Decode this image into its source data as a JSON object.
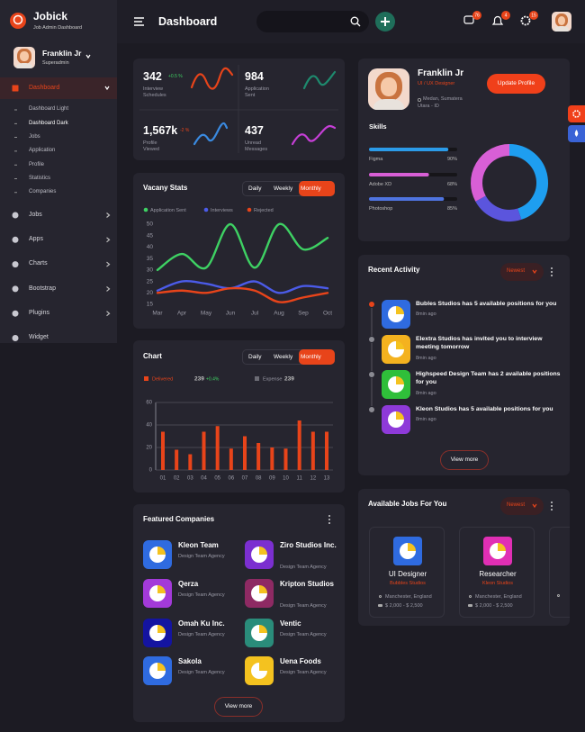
{
  "header": {
    "brand": "Jobick",
    "brand_subtitle": "Job Admin Dashboard",
    "page_title": "Dashboard",
    "notifications": [
      "76",
      "4",
      "15"
    ]
  },
  "sidebar": {
    "user_name": "Franklin Jr",
    "user_role": "Superadmin",
    "menu": [
      {
        "label": "Dashboard",
        "active": true,
        "submenu": [
          "Dashboard Light",
          "Dashboard Dark",
          "Jobs",
          "Application",
          "Profile",
          "Statistics",
          "Companies"
        ]
      },
      {
        "label": "Jobs"
      },
      {
        "label": "Apps"
      },
      {
        "label": "Charts"
      },
      {
        "label": "Bootstrap"
      },
      {
        "label": "Plugins"
      },
      {
        "label": "Widget"
      }
    ]
  },
  "stats": [
    {
      "value": "342",
      "change": "+0.5 %",
      "label": "Interview Schedules"
    },
    {
      "value": "984",
      "label": "Application Sent"
    },
    {
      "value": "1,567k",
      "change": "-2 %",
      "label": "Profile Viewed"
    },
    {
      "value": "437",
      "label": "Unread Messages"
    }
  ],
  "profile": {
    "name": "Franklin Jr",
    "role": "UI / UX Designer",
    "location": "Medan, Sumatera Utara - ID",
    "button": "Update Profile",
    "skills_title": "Skills",
    "skills": [
      {
        "name": "Figma",
        "value": 90,
        "value_label": "90%",
        "color": "#2b9be8"
      },
      {
        "name": "Adobe XD",
        "value": 68,
        "value_label": "68%",
        "color": "#d85fd6"
      },
      {
        "name": "Photoshop",
        "value": 85,
        "value_label": "85%",
        "color": "#4f74e0"
      }
    ]
  },
  "chart_data": [
    {
      "type": "line",
      "title": "Vacany Stats",
      "tabs": [
        "Daily",
        "Weekly",
        "Monthly"
      ],
      "active_tab": 2,
      "categories": [
        "Mar",
        "Apr",
        "May",
        "Jun",
        "Jul",
        "Aug",
        "Sep",
        "Oct"
      ],
      "series": [
        {
          "name": "Application Sent",
          "color": "#3ed163",
          "values": [
            30,
            37,
            31,
            50,
            31,
            50,
            39,
            44
          ]
        },
        {
          "name": "Interviews",
          "color": "#4b5be8",
          "values": [
            21,
            25,
            24,
            22,
            25,
            20,
            23,
            22
          ]
        },
        {
          "name": "Rejected",
          "color": "#e8441a",
          "values": [
            20,
            21,
            20,
            22,
            21,
            16,
            18,
            20
          ]
        }
      ],
      "ylim": [
        15,
        50
      ],
      "yticks": [
        15,
        20,
        25,
        30,
        35,
        40,
        45,
        50
      ],
      "grid": false
    },
    {
      "type": "bar",
      "title": "Chart",
      "tabs": [
        "Daily",
        "Weekly",
        "Monthly"
      ],
      "active_tab": 2,
      "categories": [
        "01",
        "02",
        "03",
        "04",
        "05",
        "06",
        "07",
        "08",
        "09",
        "10",
        "11",
        "12",
        "13"
      ],
      "series": [
        {
          "name": "Delivered",
          "color": "#e8441a",
          "total": "239",
          "change": "+0.4%",
          "values": [
            34,
            18,
            14,
            34,
            39,
            19,
            30,
            24,
            20,
            19,
            44,
            34,
            34
          ]
        }
      ],
      "legend_extra": {
        "name": "Expense",
        "color": "#6b6b74",
        "total": "239"
      },
      "ylim": [
        0,
        60
      ],
      "yticks": [
        0,
        20,
        40,
        60
      ],
      "grid": true
    },
    {
      "type": "donut",
      "values": [
        45,
        22,
        33
      ],
      "colors": [
        "#1e9ef0",
        "#5b55dd",
        "#d85fd6"
      ]
    }
  ],
  "recent_activity": {
    "title": "Recent Activity",
    "filter": "Newest",
    "button": "View more",
    "items": [
      {
        "text": "Bubles Studios has 5 available positions for you",
        "time": "8min ago",
        "color": "#2f6be0"
      },
      {
        "text": "Elextra Studios has invited you to interview meeting tomorrow",
        "time": "8min ago",
        "color": "#f4b21f"
      },
      {
        "text": "Highspeed Design Team has 2 available positions for you",
        "time": "8min ago",
        "color": "#2fbf3a"
      },
      {
        "text": "Kleon Studios has 5 available positions for you",
        "time": "8min ago",
        "color": "#8e3ad9"
      }
    ]
  },
  "featured_companies": {
    "title": "Featured Companies",
    "button": "View more",
    "items": [
      {
        "name": "Kleon Team",
        "subtitle": "Design Team Agency",
        "color": "#2f6be0"
      },
      {
        "name": "Ziro Studios Inc.",
        "subtitle": "Design Team Agency",
        "color": "#7b2fd0"
      },
      {
        "name": "Qerza",
        "subtitle": "Design Team Agency",
        "color": "#a33ad9"
      },
      {
        "name": "Kripton Studios",
        "subtitle": "Design Team Agency",
        "color": "#8e2a63"
      },
      {
        "name": "Omah Ku Inc.",
        "subtitle": "Design Team Agency",
        "color": "#1414a0"
      },
      {
        "name": "Ventic",
        "subtitle": "Design Team Agency",
        "color": "#2a8c7a"
      },
      {
        "name": "Sakola",
        "subtitle": "Design Team Agency",
        "color": "#2f6be0"
      },
      {
        "name": "Uena Foods",
        "subtitle": "Design Team Agency",
        "color": "#f4c21f"
      }
    ]
  },
  "available_jobs": {
    "title": "Available Jobs For You",
    "filter": "Newest",
    "items": [
      {
        "title": "UI Designer",
        "company": "Bubbles Studios",
        "location": "Manchester, England",
        "salary": "$ 2,000 - $ 2,500",
        "color": "#2f6be0"
      },
      {
        "title": "Researcher",
        "company": "Kleon Studios",
        "location": "Manchester, England",
        "salary": "$ 2,000 - $ 2,500",
        "color": "#e02fb4"
      }
    ]
  }
}
